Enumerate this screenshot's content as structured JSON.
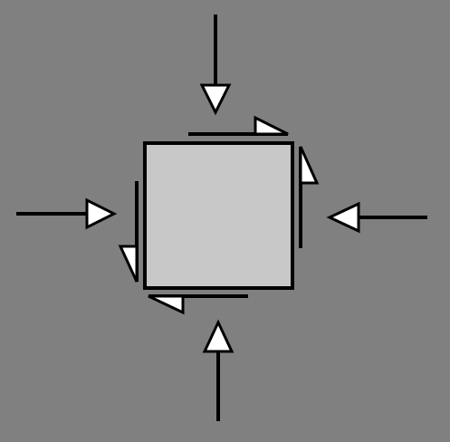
{
  "diagram": {
    "background_color": "#808080",
    "block_color": "#c8c8c8",
    "stroke_color": "#000000",
    "arrowhead_fill": "#ffffff",
    "arrowhead_icon": "triangle-arrowhead-icon"
  }
}
